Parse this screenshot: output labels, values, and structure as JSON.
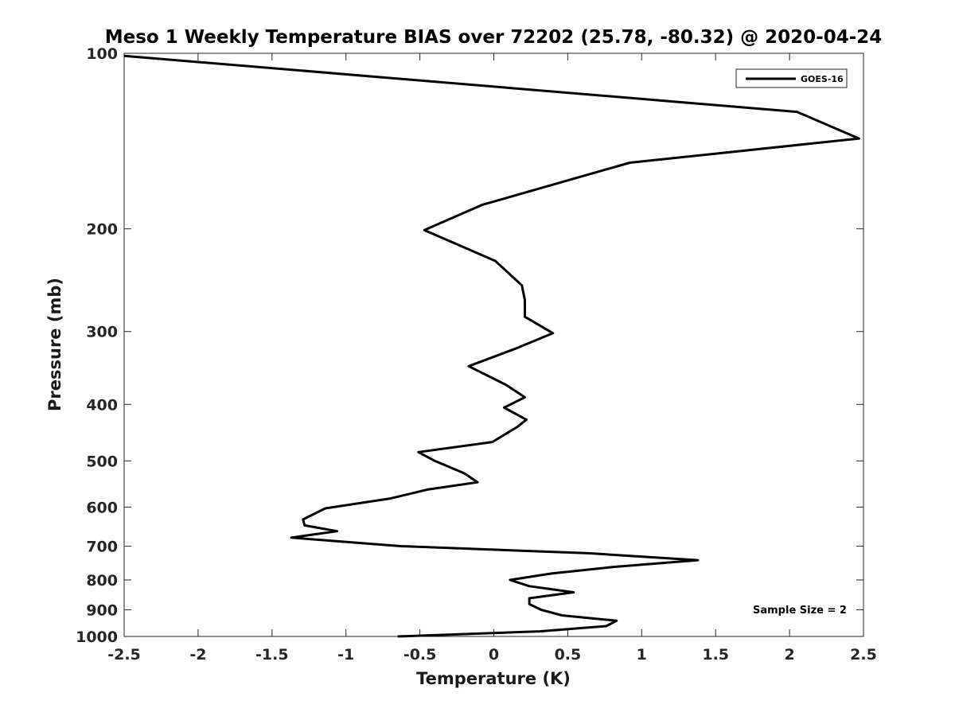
{
  "chart_data": {
    "type": "line",
    "title": "Meso 1 Weekly Temperature BIAS over 72202 (25.78, -80.32) @ 2020-04-24",
    "xlabel": "Temperature (K)",
    "ylabel": "Pressure (mb)",
    "xlim": [
      -2.5,
      2.5
    ],
    "ylim": [
      100,
      1000
    ],
    "y_scale": "log",
    "y_inverted": true,
    "x_ticks": [
      -2.5,
      -2,
      -1.5,
      -1,
      -0.5,
      0,
      0.5,
      1,
      1.5,
      2,
      2.5
    ],
    "x_tick_labels": [
      "-2.5",
      "-2",
      "-1.5",
      "-1",
      "-0.5",
      "0",
      "0.5",
      "1",
      "1.5",
      "2",
      "2.5"
    ],
    "y_ticks": [
      100,
      200,
      300,
      400,
      500,
      600,
      700,
      800,
      900,
      1000
    ],
    "y_tick_labels": [
      "100",
      "200",
      "300",
      "400",
      "500",
      "600",
      "700",
      "800",
      "900",
      "1000"
    ],
    "grid": false,
    "legend_position": "top-right",
    "series": [
      {
        "name": "GOES-16",
        "color": "#000000",
        "points": [
          {
            "x": -2.5,
            "y": 101
          },
          {
            "x": 2.05,
            "y": 126
          },
          {
            "x": 2.47,
            "y": 140
          },
          {
            "x": 0.92,
            "y": 154
          },
          {
            "x": -0.08,
            "y": 182
          },
          {
            "x": -0.47,
            "y": 201
          },
          {
            "x": 0.01,
            "y": 227
          },
          {
            "x": 0.19,
            "y": 250
          },
          {
            "x": 0.21,
            "y": 265
          },
          {
            "x": 0.21,
            "y": 283
          },
          {
            "x": 0.4,
            "y": 302
          },
          {
            "x": 0.16,
            "y": 320
          },
          {
            "x": -0.17,
            "y": 344
          },
          {
            "x": 0.08,
            "y": 370
          },
          {
            "x": 0.21,
            "y": 389
          },
          {
            "x": 0.07,
            "y": 405
          },
          {
            "x": 0.22,
            "y": 425
          },
          {
            "x": 0.16,
            "y": 437
          },
          {
            "x": -0.01,
            "y": 464
          },
          {
            "x": -0.51,
            "y": 483
          },
          {
            "x": -0.4,
            "y": 500
          },
          {
            "x": -0.2,
            "y": 525
          },
          {
            "x": -0.11,
            "y": 544
          },
          {
            "x": -0.45,
            "y": 560
          },
          {
            "x": -0.7,
            "y": 580
          },
          {
            "x": -1.14,
            "y": 603
          },
          {
            "x": -1.29,
            "y": 630
          },
          {
            "x": -1.28,
            "y": 645
          },
          {
            "x": -1.06,
            "y": 660
          },
          {
            "x": -1.37,
            "y": 677
          },
          {
            "x": -0.63,
            "y": 700
          },
          {
            "x": 0.64,
            "y": 720
          },
          {
            "x": 1.38,
            "y": 740
          },
          {
            "x": 0.81,
            "y": 760
          },
          {
            "x": 0.39,
            "y": 780
          },
          {
            "x": 0.11,
            "y": 800
          },
          {
            "x": 0.24,
            "y": 820
          },
          {
            "x": 0.54,
            "y": 840
          },
          {
            "x": 0.24,
            "y": 860
          },
          {
            "x": 0.24,
            "y": 880
          },
          {
            "x": 0.32,
            "y": 900
          },
          {
            "x": 0.46,
            "y": 920
          },
          {
            "x": 0.83,
            "y": 940
          },
          {
            "x": 0.76,
            "y": 960
          },
          {
            "x": 0.31,
            "y": 980
          },
          {
            "x": -0.65,
            "y": 1000
          }
        ]
      }
    ],
    "annotations": [
      {
        "text": "Sample Size = 2"
      }
    ]
  }
}
